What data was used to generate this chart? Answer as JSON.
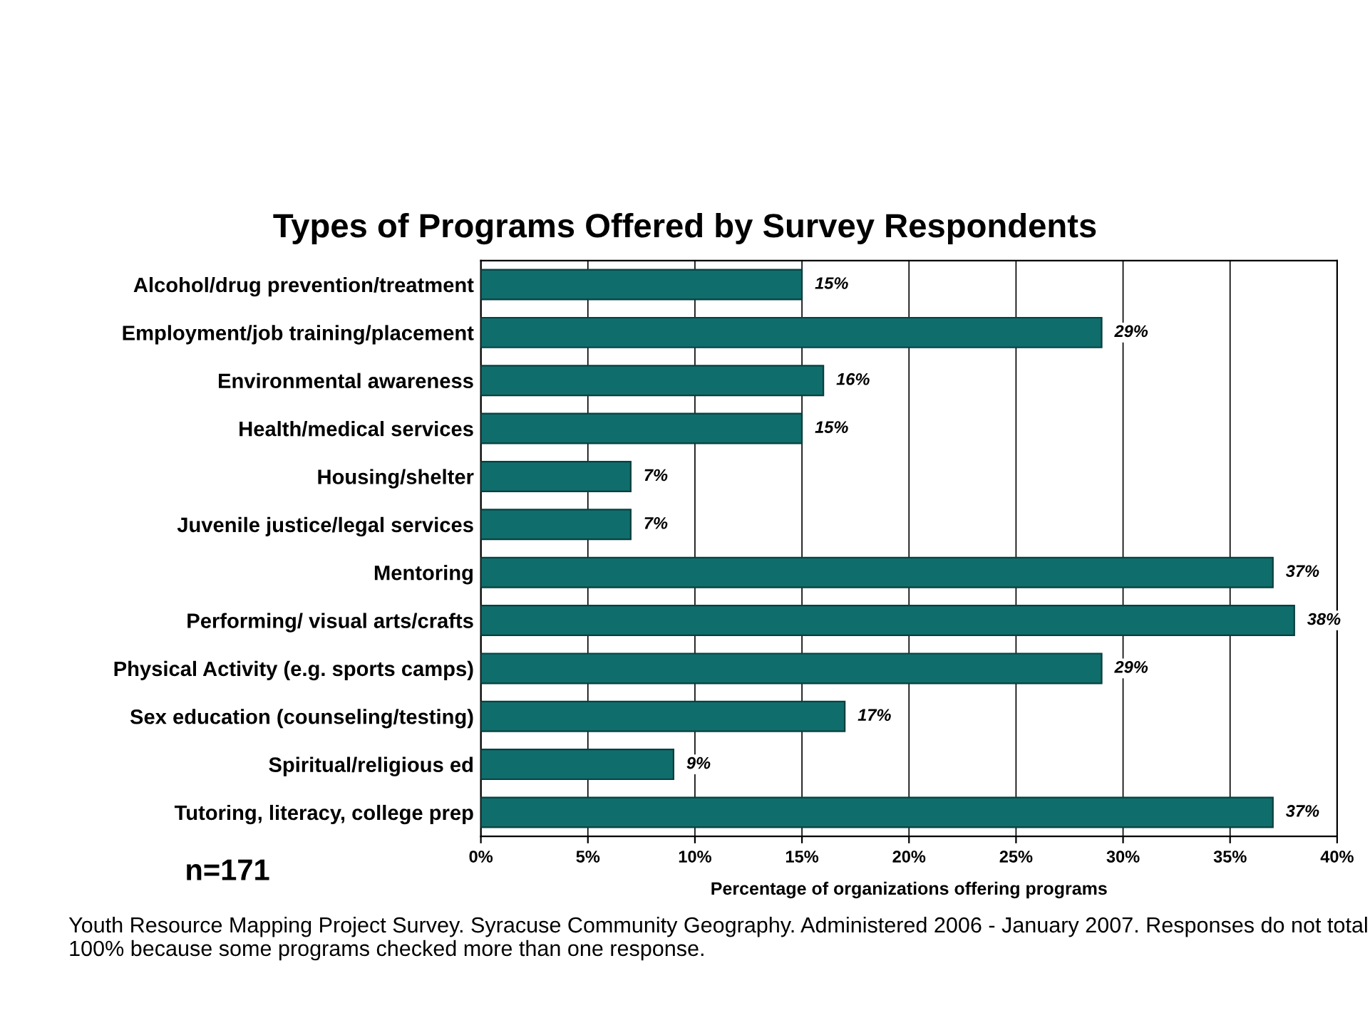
{
  "chart_data": {
    "type": "bar",
    "orientation": "horizontal",
    "title": "Types of Programs Offered by Survey Respondents",
    "xlabel": "Percentage of organizations offering programs",
    "categories": [
      "Alcohol/drug prevention/treatment",
      "Employment/job training/placement",
      "Environmental awareness",
      "Health/medical services",
      "Housing/shelter",
      "Juvenile justice/legal services",
      "Mentoring",
      "Performing/ visual arts/crafts",
      "Physical Activity (e.g. sports camps)",
      "Sex education (counseling/testing)",
      "Spiritual/religious ed",
      "Tutoring, literacy, college prep"
    ],
    "values": [
      15,
      29,
      16,
      15,
      7,
      7,
      37,
      38,
      29,
      17,
      9,
      37
    ],
    "value_labels": [
      "15%",
      "29%",
      "16%",
      "15%",
      "7%",
      "7%",
      "37%",
      "38%",
      "29%",
      "17%",
      "9%",
      "37%"
    ],
    "color": "#0f6e6c",
    "xlim": [
      0,
      40
    ],
    "xticks": [
      {
        "value": 0,
        "label": "0%"
      },
      {
        "value": 5,
        "label": "5%"
      },
      {
        "value": 10,
        "label": "10%"
      },
      {
        "value": 15,
        "label": "15%"
      },
      {
        "value": 20,
        "label": "20%"
      },
      {
        "value": 25,
        "label": "25%"
      },
      {
        "value": 30,
        "label": "30%"
      },
      {
        "value": 35,
        "label": "35%"
      },
      {
        "value": 40,
        "label": "40%"
      }
    ],
    "grid": "x",
    "legend": false,
    "annotations": [
      "n=171",
      "Youth Resource Mapping Project Survey. Syracuse Community Geography. Administered 2006 - January 2007. Responses do not total 100% because some programs checked more than one response."
    ]
  }
}
